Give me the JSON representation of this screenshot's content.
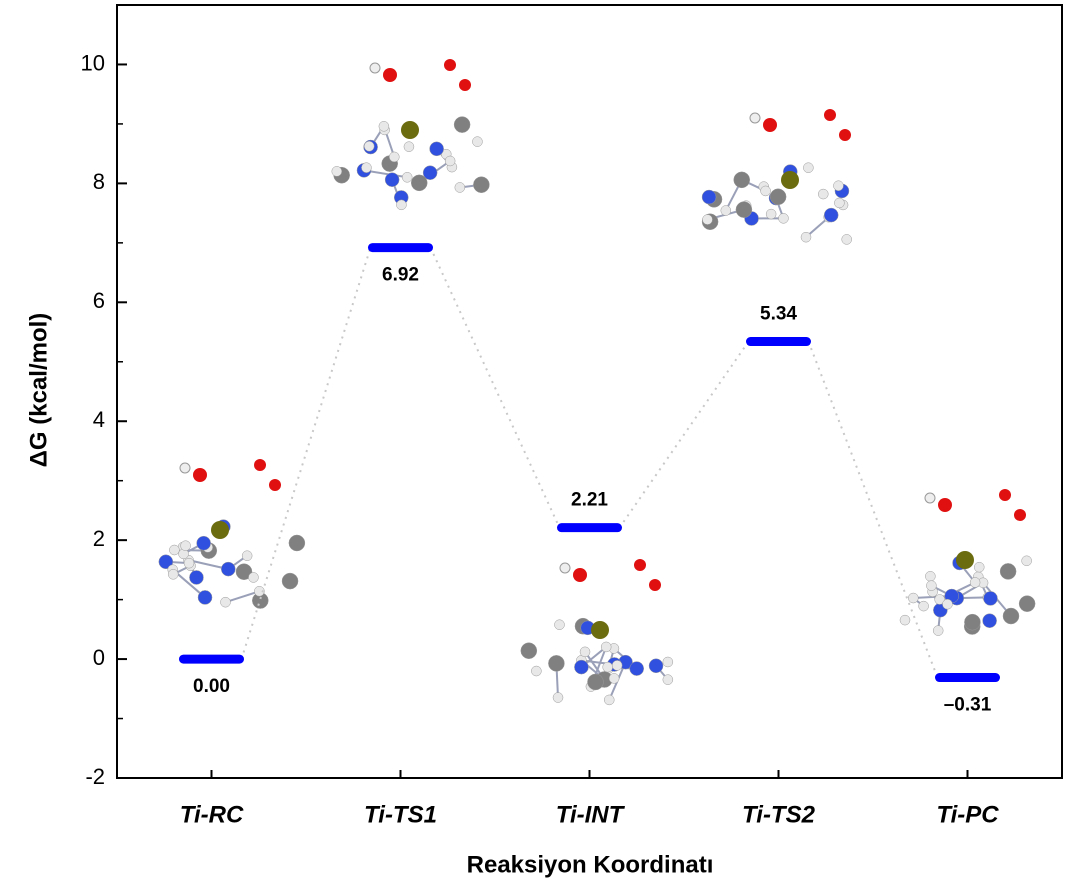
{
  "chart_data": {
    "type": "energy-profile",
    "x_label": "Reaksiyon Koordinatı",
    "y_label": "ΔG (kcal/mol)",
    "categories": [
      "Ti-RC",
      "Ti-TS1",
      "Ti-INT",
      "Ti-TS2",
      "Ti-PC"
    ],
    "values": [
      0.0,
      6.92,
      2.21,
      5.34,
      -0.31
    ],
    "value_labels": [
      "0.00",
      "6.92",
      "2.21",
      "5.34",
      "–0.31"
    ],
    "color": "#0000ff",
    "ylim": [
      -2,
      11
    ],
    "yticks": [
      -2,
      0,
      2,
      4,
      6,
      8,
      10
    ]
  }
}
